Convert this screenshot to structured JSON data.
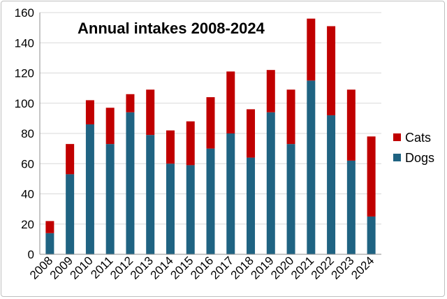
{
  "chart_data": {
    "type": "bar",
    "stacked": true,
    "title": "Annual intakes 2008-2024",
    "categories": [
      "2008",
      "2009",
      "2010",
      "2011",
      "2012",
      "2013",
      "2014",
      "2015",
      "2016",
      "2017",
      "2018",
      "2019",
      "2020",
      "2021",
      "2022",
      "2023",
      "2024"
    ],
    "series": [
      {
        "name": "Dogs",
        "color": "#1f6382",
        "values": [
          14,
          53,
          86,
          73,
          94,
          79,
          60,
          59,
          70,
          80,
          64,
          94,
          73,
          115,
          92,
          62,
          25
        ]
      },
      {
        "name": "Cats",
        "color": "#c00000",
        "values": [
          8,
          20,
          16,
          24,
          12,
          30,
          22,
          29,
          34,
          41,
          32,
          28,
          36,
          41,
          59,
          47,
          53
        ]
      }
    ],
    "ylim": [
      0,
      160
    ],
    "yticks": [
      0,
      20,
      40,
      60,
      80,
      100,
      120,
      140,
      160
    ],
    "grid": true,
    "legend": "right",
    "xlabel": "",
    "ylabel": ""
  }
}
